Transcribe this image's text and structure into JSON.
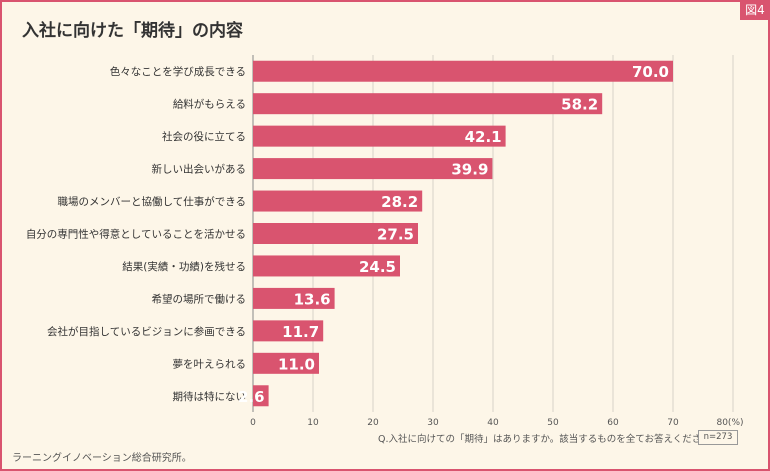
{
  "figure_tag": "図4",
  "title": "入社に向けた「期待」の内容",
  "footnote": "Q.入社に向けての「期待」はありますか。該当するものを全てお答えください。",
  "sample_size": "n=273",
  "credit": "ラーニングイノベーション総合研究所。",
  "colors": {
    "bar": "#d9546f",
    "background": "#fdf6e8",
    "grid": "#d8d3c8"
  },
  "chart_data": {
    "type": "bar",
    "orientation": "horizontal",
    "categories": [
      "色々なことを学び成長できる",
      "給料がもらえる",
      "社会の役に立てる",
      "新しい出会いがある",
      "職場のメンバーと協働して仕事ができる",
      "自分の専門性や得意としていることを活かせる",
      "結果(実績・功績)を残せる",
      "希望の場所で働ける",
      "会社が目指しているビジョンに参画できる",
      "夢を叶えられる",
      "期待は特にない"
    ],
    "values": [
      70.0,
      58.2,
      42.1,
      39.9,
      28.2,
      27.5,
      24.5,
      13.6,
      11.7,
      11.0,
      2.6
    ],
    "value_labels": [
      "70.0",
      "58.2",
      "42.1",
      "39.9",
      "28.2",
      "27.5",
      "24.5",
      "13.6",
      "11.7",
      "11.0",
      "2.6"
    ],
    "xlim": [
      0,
      80
    ],
    "x_ticks": [
      "0",
      "10",
      "20",
      "30",
      "40",
      "50",
      "60",
      "70",
      "80(%)"
    ],
    "grid": true
  }
}
